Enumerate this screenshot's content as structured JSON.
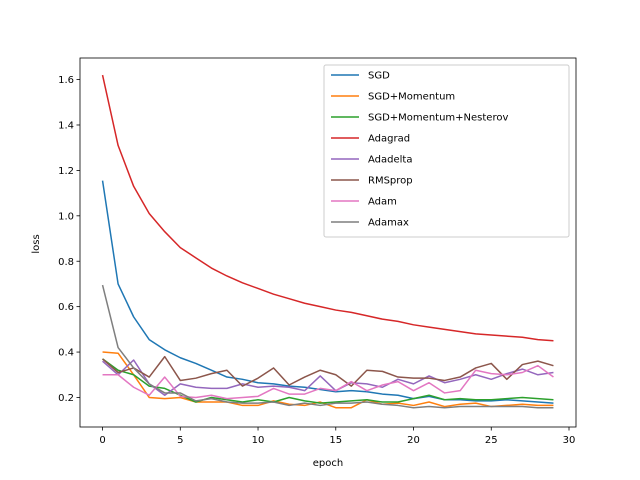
{
  "chart_data": {
    "type": "line",
    "title": "",
    "xlabel": "epoch",
    "ylabel": "loss",
    "xlim": [
      -1.45,
      30.45
    ],
    "ylim": [
      0.07,
      1.695
    ],
    "xticks": [
      0,
      5,
      10,
      15,
      20,
      25,
      30
    ],
    "yticks": [
      0.2,
      0.4,
      0.6,
      0.8,
      1.0,
      1.2,
      1.4,
      1.6
    ],
    "legend_position": "top-right",
    "grid": false,
    "x": [
      0,
      1,
      2,
      3,
      4,
      5,
      6,
      7,
      8,
      9,
      10,
      11,
      12,
      13,
      14,
      15,
      16,
      17,
      18,
      19,
      20,
      21,
      22,
      23,
      24,
      25,
      26,
      27,
      28,
      29
    ],
    "series": [
      {
        "name": "SGD",
        "color": "#1f77b4",
        "values": [
          1.155,
          0.7,
          0.555,
          0.455,
          0.41,
          0.375,
          0.35,
          0.32,
          0.29,
          0.28,
          0.265,
          0.26,
          0.25,
          0.245,
          0.235,
          0.225,
          0.23,
          0.225,
          0.215,
          0.21,
          0.195,
          0.205,
          0.19,
          0.19,
          0.185,
          0.185,
          0.19,
          0.185,
          0.18,
          0.175
        ]
      },
      {
        "name": "SGD+Momentum",
        "color": "#ff7f0e",
        "values": [
          0.4,
          0.395,
          0.3,
          0.2,
          0.195,
          0.2,
          0.18,
          0.18,
          0.18,
          0.165,
          0.165,
          0.185,
          0.17,
          0.165,
          0.18,
          0.155,
          0.155,
          0.19,
          0.17,
          0.175,
          0.165,
          0.18,
          0.16,
          0.17,
          0.175,
          0.16,
          0.165,
          0.17,
          0.165,
          0.165
        ]
      },
      {
        "name": "SGD+Momentum+Nesterov",
        "color": "#2ca02c",
        "values": [
          0.37,
          0.32,
          0.3,
          0.25,
          0.24,
          0.21,
          0.18,
          0.2,
          0.19,
          0.18,
          0.19,
          0.18,
          0.2,
          0.185,
          0.175,
          0.18,
          0.185,
          0.19,
          0.18,
          0.18,
          0.195,
          0.21,
          0.19,
          0.195,
          0.19,
          0.19,
          0.195,
          0.2,
          0.195,
          0.19
        ]
      },
      {
        "name": "Adagrad",
        "color": "#d62728",
        "values": [
          1.62,
          1.31,
          1.13,
          1.01,
          0.93,
          0.86,
          0.815,
          0.77,
          0.735,
          0.705,
          0.68,
          0.655,
          0.635,
          0.615,
          0.6,
          0.585,
          0.575,
          0.56,
          0.545,
          0.535,
          0.52,
          0.51,
          0.5,
          0.49,
          0.48,
          0.475,
          0.47,
          0.465,
          0.455,
          0.45
        ]
      },
      {
        "name": "Adadelta",
        "color": "#9467bd",
        "values": [
          0.36,
          0.3,
          0.365,
          0.26,
          0.21,
          0.26,
          0.245,
          0.24,
          0.24,
          0.26,
          0.245,
          0.25,
          0.245,
          0.23,
          0.295,
          0.23,
          0.265,
          0.26,
          0.245,
          0.28,
          0.26,
          0.295,
          0.265,
          0.28,
          0.3,
          0.28,
          0.305,
          0.325,
          0.3,
          0.31
        ]
      },
      {
        "name": "RMSprop",
        "color": "#8c564b",
        "values": [
          0.37,
          0.31,
          0.33,
          0.29,
          0.38,
          0.275,
          0.285,
          0.305,
          0.32,
          0.25,
          0.285,
          0.33,
          0.255,
          0.29,
          0.32,
          0.3,
          0.25,
          0.32,
          0.315,
          0.29,
          0.285,
          0.285,
          0.275,
          0.29,
          0.33,
          0.35,
          0.28,
          0.345,
          0.36,
          0.34
        ]
      },
      {
        "name": "Adam",
        "color": "#e377c2",
        "values": [
          0.3,
          0.3,
          0.245,
          0.21,
          0.29,
          0.205,
          0.2,
          0.21,
          0.195,
          0.2,
          0.205,
          0.24,
          0.215,
          0.215,
          0.24,
          0.23,
          0.27,
          0.23,
          0.255,
          0.27,
          0.23,
          0.265,
          0.22,
          0.23,
          0.32,
          0.305,
          0.3,
          0.31,
          0.34,
          0.29
        ]
      },
      {
        "name": "Adamax",
        "color": "#7f7f7f",
        "values": [
          0.695,
          0.42,
          0.33,
          0.26,
          0.22,
          0.22,
          0.185,
          0.195,
          0.18,
          0.175,
          0.175,
          0.18,
          0.165,
          0.175,
          0.165,
          0.175,
          0.175,
          0.18,
          0.17,
          0.165,
          0.155,
          0.16,
          0.155,
          0.16,
          0.16,
          0.16,
          0.16,
          0.16,
          0.155,
          0.155
        ]
      }
    ]
  }
}
